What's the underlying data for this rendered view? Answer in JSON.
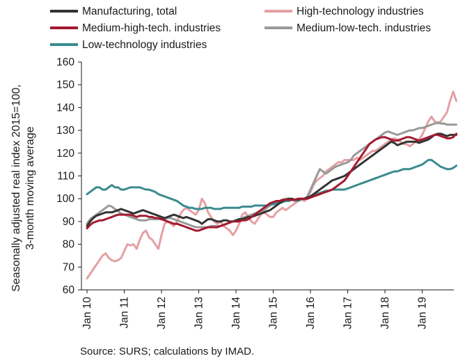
{
  "chart_data": {
    "type": "line",
    "title": "",
    "ylabel_lines": [
      "Seasonally adjusted real index 2015=100,",
      "3-month moving average"
    ],
    "xlabel": "",
    "ylim": [
      60,
      160
    ],
    "yticks": [
      60,
      70,
      80,
      90,
      100,
      110,
      120,
      130,
      140,
      150,
      160
    ],
    "xticks": [
      "Jan 10",
      "Jan 11",
      "Jan 12",
      "Jan 13",
      "Jan 14",
      "Jan 15",
      "Jan 16",
      "Jan 17",
      "Jan 18",
      "Jan 19"
    ],
    "x_start_year": 2010,
    "x_months": 120,
    "grid": false,
    "legend_position": "top",
    "source": "Source: SURS; calculations by IMAD.",
    "series": [
      {
        "name": "Manufacturing, total",
        "color": "#333333",
        "values": [
          88,
          90,
          91.5,
          92.5,
          93,
          93.5,
          94,
          94,
          94,
          94.5,
          95,
          95.5,
          95,
          94.5,
          94,
          93.5,
          94,
          94.5,
          95,
          94.5,
          94,
          93.5,
          93,
          92.5,
          92,
          91.5,
          92,
          92.5,
          93,
          92.5,
          92,
          91.5,
          92,
          91.5,
          91,
          90.5,
          90,
          89,
          90,
          91,
          91,
          90.5,
          90,
          90,
          90.5,
          90.5,
          90,
          90,
          90.5,
          91,
          91,
          91.5,
          92,
          92,
          92.5,
          93,
          93.5,
          94,
          94.5,
          95,
          96,
          97,
          98,
          99,
          99.5,
          100,
          100,
          99.5,
          99.5,
          100,
          100,
          100.5,
          101,
          102,
          103,
          104,
          105,
          106,
          107,
          108,
          108.5,
          109,
          109.5,
          110,
          111,
          112,
          113,
          114,
          115,
          116,
          117,
          118,
          119,
          120,
          121,
          122,
          123,
          124,
          125,
          124.5,
          123.5,
          124,
          124.5,
          125,
          125,
          125,
          125,
          124.5,
          125,
          125.5,
          126,
          127,
          128,
          128.5,
          128.5,
          128,
          127.5,
          128,
          128,
          128
        ]
      },
      {
        "name": "High-technology industries",
        "color": "#e4a0a3",
        "values": [
          65,
          67,
          69,
          71,
          73,
          75,
          76,
          74,
          73,
          72.5,
          73,
          74,
          77,
          80,
          79.5,
          80,
          78,
          82,
          85,
          86,
          83,
          82,
          80,
          78,
          84,
          89,
          90,
          89,
          88,
          90,
          93,
          95,
          96,
          95,
          94,
          93,
          95,
          100,
          98,
          94,
          92,
          90,
          89,
          90,
          88,
          87,
          86,
          84,
          86,
          89,
          93,
          94,
          92,
          90,
          89,
          91,
          93,
          94,
          93,
          92,
          92,
          94,
          95,
          96,
          95,
          96,
          97,
          98,
          99,
          100,
          99,
          100,
          103,
          106,
          108,
          109,
          110,
          112,
          113,
          114,
          115,
          116,
          116,
          117,
          117,
          117,
          117,
          118,
          117,
          118,
          119,
          120,
          121,
          121,
          122,
          123,
          124,
          125,
          126,
          126.5,
          126,
          125,
          124,
          124,
          123,
          124,
          125,
          126,
          128,
          131,
          134,
          136,
          134,
          133,
          134,
          136,
          138,
          143,
          147,
          143
        ]
      },
      {
        "name": "Medium-high-tech. industries",
        "color": "#a41a30",
        "values": [
          87,
          88.5,
          89.5,
          90,
          90.5,
          90.5,
          91,
          91.5,
          92,
          92.5,
          93,
          93,
          93,
          93,
          93,
          92.5,
          92,
          92.5,
          92.5,
          92.5,
          92,
          92,
          91.5,
          91.5,
          91,
          90.5,
          90,
          89.5,
          89,
          89,
          88.5,
          88,
          87.5,
          87,
          86.5,
          86,
          86,
          86.5,
          87,
          87.5,
          87.5,
          87.5,
          87.5,
          88,
          88.5,
          89,
          89.5,
          90,
          90,
          90,
          90.5,
          90.5,
          91,
          92,
          93,
          94,
          95,
          96,
          97,
          98,
          98.5,
          99,
          99,
          99.5,
          99.5,
          99.5,
          99.5,
          99.5,
          100,
          100,
          100,
          100,
          100.5,
          101,
          101.5,
          102,
          102.5,
          103,
          103.5,
          104,
          105,
          106,
          107,
          108,
          110,
          112,
          114,
          116,
          118,
          120,
          122,
          124,
          125,
          126,
          126.5,
          127,
          127,
          126.5,
          126,
          125.5,
          125.5,
          126,
          126.5,
          127,
          127,
          126.5,
          126,
          125.5,
          126,
          126.5,
          127,
          127.5,
          128,
          128,
          127.5,
          127,
          126.5,
          126.5,
          127,
          128.5
        ]
      },
      {
        "name": "Medium-low-tech. industries",
        "color": "#999999",
        "values": [
          89,
          91,
          92,
          93,
          94,
          95,
          96,
          97,
          96.5,
          95.5,
          94.5,
          93.5,
          93,
          92.5,
          92,
          91.5,
          91,
          90.5,
          90.5,
          90.5,
          91,
          91,
          91,
          91,
          91,
          91,
          91.5,
          91.5,
          91,
          90.5,
          90,
          89.5,
          89,
          88.5,
          88,
          87.5,
          87.5,
          87.5,
          87.5,
          87.5,
          88,
          88,
          88,
          88,
          88.5,
          89,
          89.5,
          90,
          90.5,
          91,
          91.5,
          92,
          92.5,
          93,
          93.5,
          94,
          94.5,
          95,
          96,
          97,
          98,
          98.5,
          99,
          99.5,
          100,
          100,
          99.5,
          99,
          99,
          99.5,
          100,
          101,
          104,
          107,
          110,
          113,
          112,
          111,
          112,
          113,
          114,
          114.5,
          115,
          115.5,
          116,
          117,
          119,
          120,
          121,
          122,
          123,
          124,
          125,
          126,
          127,
          128,
          129,
          129.5,
          129,
          128.5,
          128,
          128.5,
          129,
          129.5,
          130,
          130,
          130.5,
          131,
          131,
          131.5,
          132,
          132.5,
          133,
          133.5,
          133,
          133,
          132.5,
          132.5,
          132.5,
          132.5
        ]
      },
      {
        "name": "Low-technology industries",
        "color": "#3a8b8f",
        "values": [
          102,
          103,
          104,
          105,
          105,
          104,
          104,
          105,
          106,
          105,
          105,
          104,
          104,
          104.5,
          105,
          105,
          105,
          105,
          104.5,
          104,
          104,
          103.5,
          103,
          102,
          101.5,
          101,
          100.5,
          100,
          99.5,
          99,
          98,
          97,
          96.5,
          96,
          96,
          95.5,
          95.5,
          95.5,
          96,
          96,
          96,
          95.5,
          95.5,
          95.5,
          96,
          96,
          96,
          96,
          96,
          96,
          96.5,
          96.5,
          96.5,
          96.5,
          97,
          97,
          97,
          97,
          97,
          97.5,
          97.5,
          98,
          98,
          98.5,
          99,
          99,
          99.5,
          99.5,
          100,
          100,
          100,
          100.5,
          101,
          101.5,
          102,
          102.5,
          103,
          103.5,
          103.5,
          104,
          104,
          104,
          104,
          104,
          104.5,
          105,
          105.5,
          106,
          106.5,
          107,
          107.5,
          108,
          108.5,
          109,
          109.5,
          110,
          110.5,
          111,
          111.5,
          112,
          112,
          112.5,
          113,
          113,
          113,
          113.5,
          114,
          114.5,
          115,
          116,
          117,
          117,
          116,
          115,
          114,
          113.5,
          113,
          113,
          113.5,
          114.5
        ]
      }
    ]
  }
}
